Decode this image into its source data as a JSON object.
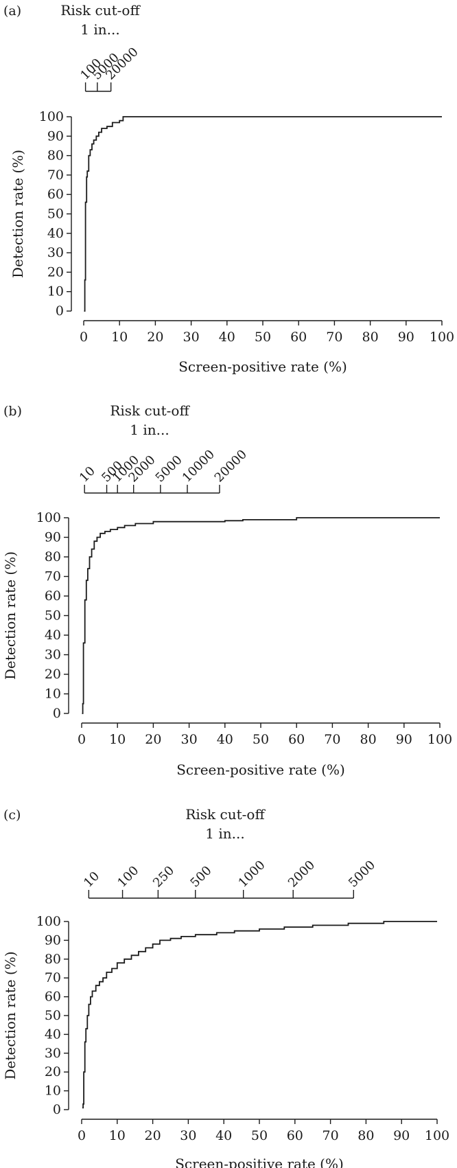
{
  "chart_data": [
    {
      "type": "line",
      "panel_label": "(a)",
      "risk_scale": {
        "title_line1": "Risk cut-off",
        "title_line2": "1 in...",
        "ticks": [
          {
            "label": "100",
            "x": 0.5
          },
          {
            "label": "5000",
            "x": 3.8
          },
          {
            "label": "20000",
            "x": 7.6
          }
        ]
      },
      "xlabel": "Screen-positive rate (%)",
      "ylabel": "Detection rate (%)",
      "xlim": [
        0,
        100
      ],
      "ylim": [
        0,
        100
      ],
      "xticks": [
        0,
        10,
        20,
        30,
        40,
        50,
        60,
        70,
        80,
        90,
        100
      ],
      "yticks": [
        0,
        10,
        20,
        30,
        40,
        50,
        60,
        70,
        80,
        90,
        100
      ],
      "series": [
        {
          "step": true,
          "x": [
            0.1,
            0.3,
            0.5,
            0.8,
            1.0,
            1.4,
            1.8,
            2.3,
            2.8,
            3.5,
            4.2,
            5.0,
            6.5,
            8.0,
            10.0,
            11.0,
            100
          ],
          "y": [
            0,
            16,
            56,
            69,
            72,
            80,
            83,
            86,
            88,
            90,
            92,
            94,
            95,
            97,
            98,
            100,
            100
          ]
        }
      ]
    },
    {
      "type": "line",
      "panel_label": "(b)",
      "risk_scale": {
        "title_line1": "Risk cut-off",
        "title_line2": "1 in...",
        "ticks": [
          {
            "label": "10",
            "x": 0.8
          },
          {
            "label": "500",
            "x": 7.0
          },
          {
            "label": "1000",
            "x": 10.0
          },
          {
            "label": "2000",
            "x": 14.5
          },
          {
            "label": "5000",
            "x": 22.0
          },
          {
            "label": "10000",
            "x": 29.5
          },
          {
            "label": "20000",
            "x": 38.5
          }
        ]
      },
      "xlabel": "Screen-positive rate (%)",
      "ylabel": "Detection rate (%)",
      "xlim": [
        0,
        100
      ],
      "ylim": [
        0,
        100
      ],
      "xticks": [
        0,
        10,
        20,
        30,
        40,
        50,
        60,
        70,
        80,
        90,
        100
      ],
      "yticks": [
        0,
        10,
        20,
        30,
        40,
        50,
        60,
        70,
        80,
        90,
        100
      ],
      "series": [
        {
          "step": true,
          "x": [
            0.1,
            0.3,
            0.5,
            0.9,
            1.3,
            1.7,
            2.2,
            2.8,
            3.5,
            4.3,
            5.2,
            6.5,
            8.0,
            10.0,
            12.0,
            15.0,
            20.0,
            40.0,
            45.0,
            60.0,
            100
          ],
          "y": [
            0,
            5,
            36,
            58,
            68,
            74,
            80,
            84,
            88,
            90,
            92,
            93,
            94,
            95,
            96,
            97,
            98,
            98.5,
            99,
            100,
            100
          ]
        }
      ]
    },
    {
      "type": "line",
      "panel_label": "(c)",
      "risk_scale": {
        "title_line1": "Risk cut-off",
        "title_line2": "1 in...",
        "ticks": [
          {
            "label": "10",
            "x": 2.0
          },
          {
            "label": "100",
            "x": 11.5
          },
          {
            "label": "250",
            "x": 21.5
          },
          {
            "label": "500",
            "x": 32.0
          },
          {
            "label": "1000",
            "x": 45.5
          },
          {
            "label": "2000",
            "x": 59.5
          },
          {
            "label": "5000",
            "x": 76.5
          }
        ]
      },
      "xlabel": "Screen-positive rate (%)",
      "ylabel": "Detection rate (%)",
      "xlim": [
        0,
        100
      ],
      "ylim": [
        0,
        100
      ],
      "xticks": [
        0,
        10,
        20,
        30,
        40,
        50,
        60,
        70,
        80,
        90,
        100
      ],
      "yticks": [
        0,
        10,
        20,
        30,
        40,
        50,
        60,
        70,
        80,
        90,
        100
      ],
      "series": [
        {
          "step": true,
          "x": [
            0.2,
            0.4,
            0.6,
            0.9,
            1.2,
            1.6,
            2.0,
            2.5,
            3.0,
            4.0,
            5.0,
            6.0,
            7.0,
            8.5,
            10.0,
            12.0,
            14.0,
            16.0,
            18.0,
            20.0,
            22.0,
            25.0,
            28.0,
            32.0,
            38.0,
            43.0,
            50.0,
            57.0,
            65.0,
            75.0,
            85.0,
            100
          ],
          "y": [
            1,
            3,
            20,
            36,
            43,
            50,
            56,
            60,
            63,
            66,
            68,
            70,
            73,
            75,
            78,
            80,
            82,
            84,
            86,
            88,
            90,
            91,
            92,
            93,
            94,
            95,
            96,
            97,
            98,
            99,
            100,
            100
          ]
        }
      ]
    }
  ]
}
